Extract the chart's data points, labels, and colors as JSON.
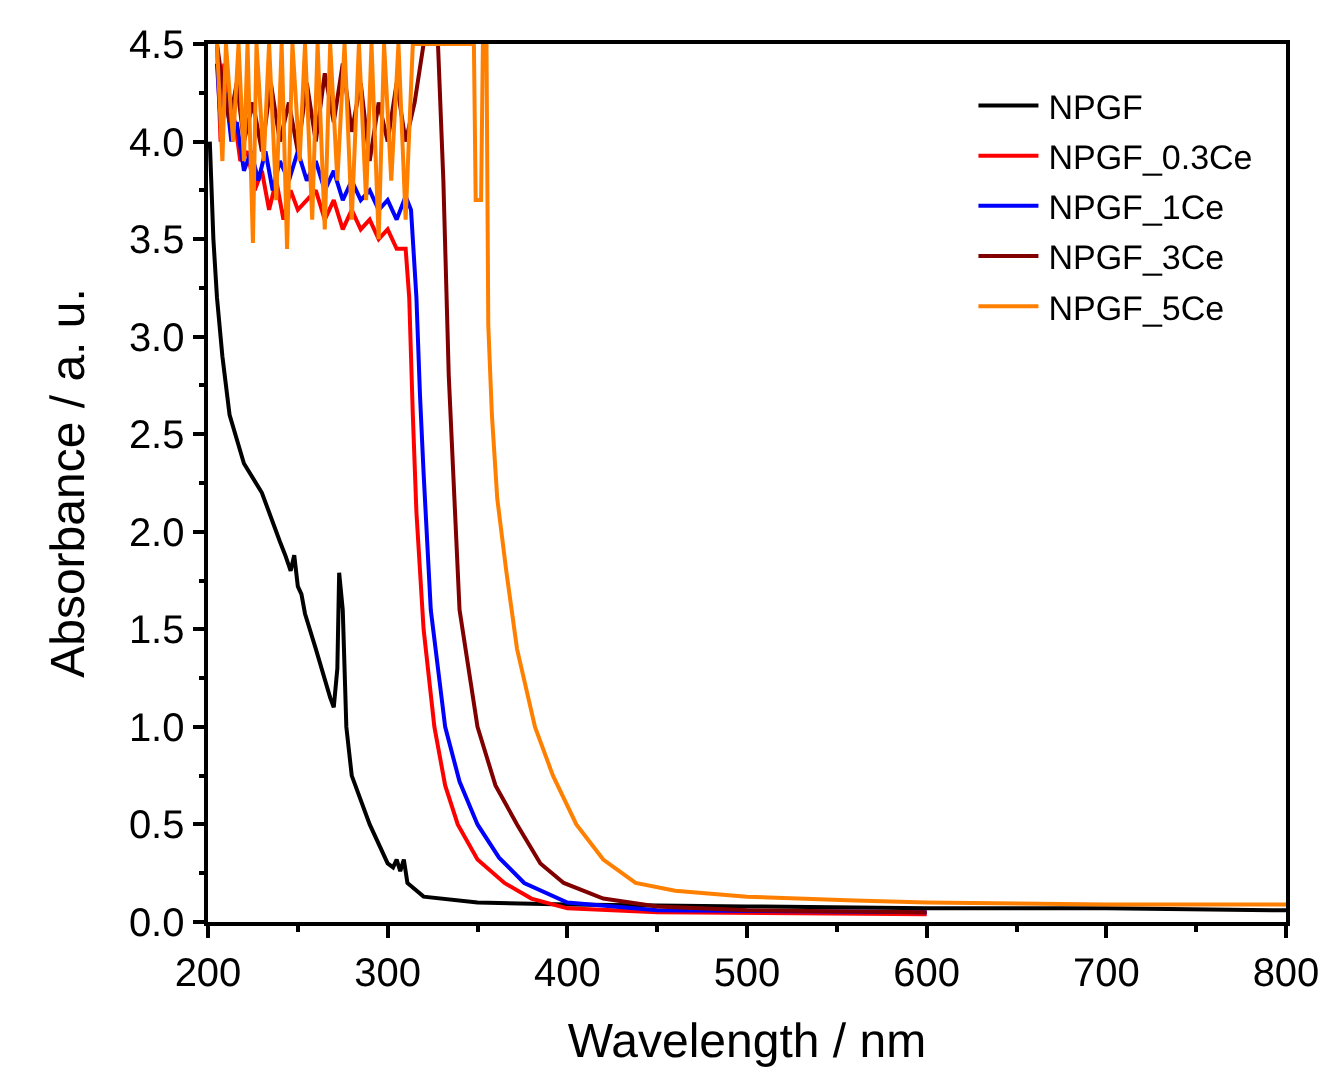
{
  "chart_data": {
    "type": "line",
    "xlabel": "Wavelength / nm",
    "ylabel": "Absorbance / a. u.",
    "xlim": [
      200,
      800
    ],
    "xticks": [
      200,
      300,
      400,
      500,
      600,
      700,
      800
    ],
    "ylim": [
      0,
      4.5
    ],
    "yticks": [
      {
        "value": 0,
        "label": "0.0"
      },
      0.5,
      {
        "value": 1,
        "label": "1.0"
      },
      1.5,
      {
        "value": 2,
        "label": "2.0"
      },
      2.5,
      {
        "value": 3,
        "label": "3.0"
      },
      3.5,
      {
        "value": 4,
        "label": "4.0"
      },
      4.5
    ],
    "legend": "top right",
    "marker": "none",
    "line_style": "solid",
    "series": [
      {
        "name": "NPGF",
        "color": "#000000",
        "x": [
          201,
          203,
          205,
          208,
          212,
          220,
          230,
          240,
          243,
          246,
          248,
          250,
          252,
          254,
          260,
          268,
          270,
          272,
          273,
          275,
          277,
          280,
          290,
          300,
          303,
          305,
          307,
          309,
          311,
          320,
          350,
          400,
          500,
          600,
          700,
          800
        ],
        "values": [
          4.0,
          3.5,
          3.2,
          2.9,
          2.6,
          2.35,
          2.2,
          1.95,
          1.88,
          1.8,
          1.88,
          1.72,
          1.68,
          1.58,
          1.4,
          1.15,
          1.1,
          1.3,
          1.79,
          1.6,
          1.0,
          0.75,
          0.5,
          0.3,
          0.28,
          0.32,
          0.26,
          0.32,
          0.2,
          0.13,
          0.1,
          0.09,
          0.08,
          0.07,
          0.07,
          0.06
        ]
      },
      {
        "name": "NPGF_0.3Ce",
        "color": "#ff0000",
        "x": [
          205,
          207,
          209,
          212,
          215,
          218,
          222,
          226,
          230,
          234,
          238,
          242,
          246,
          250,
          255,
          260,
          265,
          270,
          275,
          280,
          285,
          290,
          295,
          300,
          305,
          310,
          312,
          314,
          316,
          320,
          326,
          332,
          339,
          350,
          365,
          380,
          400,
          450,
          600
        ],
        "values": [
          4.5,
          4.0,
          4.4,
          4.2,
          4.1,
          3.9,
          3.95,
          3.75,
          3.85,
          3.65,
          3.8,
          3.6,
          3.75,
          3.65,
          3.7,
          3.75,
          3.6,
          3.7,
          3.55,
          3.65,
          3.55,
          3.6,
          3.5,
          3.55,
          3.45,
          3.45,
          3.2,
          2.6,
          2.1,
          1.5,
          1.0,
          0.7,
          0.5,
          0.32,
          0.2,
          0.12,
          0.07,
          0.05,
          0.04
        ]
      },
      {
        "name": "NPGF_1Ce",
        "color": "#0000ff",
        "x": [
          205,
          207,
          210,
          213,
          216,
          220,
          224,
          228,
          232,
          236,
          240,
          245,
          250,
          255,
          260,
          265,
          270,
          275,
          280,
          285,
          290,
          295,
          300,
          305,
          310,
          313,
          316,
          318,
          320,
          324,
          332,
          340,
          350,
          362,
          376,
          400,
          450,
          600
        ],
        "values": [
          4.4,
          4.1,
          4.25,
          4.0,
          4.1,
          3.85,
          3.95,
          3.8,
          3.95,
          3.75,
          3.9,
          3.8,
          3.95,
          3.8,
          3.9,
          3.75,
          3.85,
          3.7,
          3.8,
          3.7,
          3.75,
          3.65,
          3.7,
          3.6,
          3.72,
          3.65,
          3.2,
          2.7,
          2.3,
          1.6,
          1.0,
          0.72,
          0.5,
          0.33,
          0.2,
          0.1,
          0.06,
          0.05
        ]
      },
      {
        "name": "NPGF_3Ce",
        "color": "#800000",
        "x": [
          205,
          208,
          212,
          216,
          220,
          225,
          230,
          235,
          240,
          245,
          250,
          255,
          260,
          265,
          270,
          275,
          280,
          285,
          290,
          295,
          300,
          305,
          310,
          315,
          320,
          328,
          331,
          334,
          337,
          340,
          350,
          360,
          372,
          385,
          398,
          420,
          450,
          500,
          600
        ],
        "values": [
          4.5,
          4.3,
          4.1,
          4.3,
          4.0,
          4.2,
          3.95,
          4.3,
          4.0,
          4.2,
          3.95,
          4.3,
          4.0,
          4.35,
          4.1,
          4.4,
          4.05,
          4.3,
          3.9,
          4.2,
          4.0,
          4.3,
          4.0,
          4.2,
          4.5,
          4.5,
          3.8,
          2.8,
          2.2,
          1.6,
          1.0,
          0.7,
          0.5,
          0.3,
          0.2,
          0.12,
          0.08,
          0.06,
          0.05
        ]
      },
      {
        "name": "NPGF_5Ce",
        "color": "#ff8000",
        "x": [
          205,
          208,
          210,
          214,
          217,
          220,
          222,
          225,
          227,
          231,
          234,
          238,
          241,
          244,
          247,
          251,
          254,
          258,
          261,
          265,
          268,
          272,
          276,
          280,
          284,
          288,
          291,
          295,
          298,
          302,
          306,
          310,
          314,
          348,
          349,
          352,
          353,
          355,
          356,
          358,
          361,
          366,
          372,
          382,
          392,
          405,
          420,
          438,
          460,
          500,
          560,
          600,
          700,
          800
        ],
        "values": [
          4.5,
          3.9,
          4.5,
          4.0,
          4.5,
          3.9,
          4.5,
          3.48,
          4.5,
          3.9,
          4.5,
          3.7,
          4.5,
          3.45,
          4.5,
          3.9,
          4.5,
          3.6,
          4.5,
          3.55,
          4.5,
          3.8,
          4.5,
          3.6,
          4.5,
          3.7,
          4.5,
          3.5,
          4.5,
          3.8,
          4.5,
          3.6,
          4.5,
          4.5,
          3.7,
          3.7,
          4.5,
          4.5,
          3.06,
          2.6,
          2.17,
          1.8,
          1.4,
          1.0,
          0.75,
          0.5,
          0.32,
          0.2,
          0.16,
          0.13,
          0.11,
          0.1,
          0.09,
          0.09
        ]
      }
    ]
  }
}
